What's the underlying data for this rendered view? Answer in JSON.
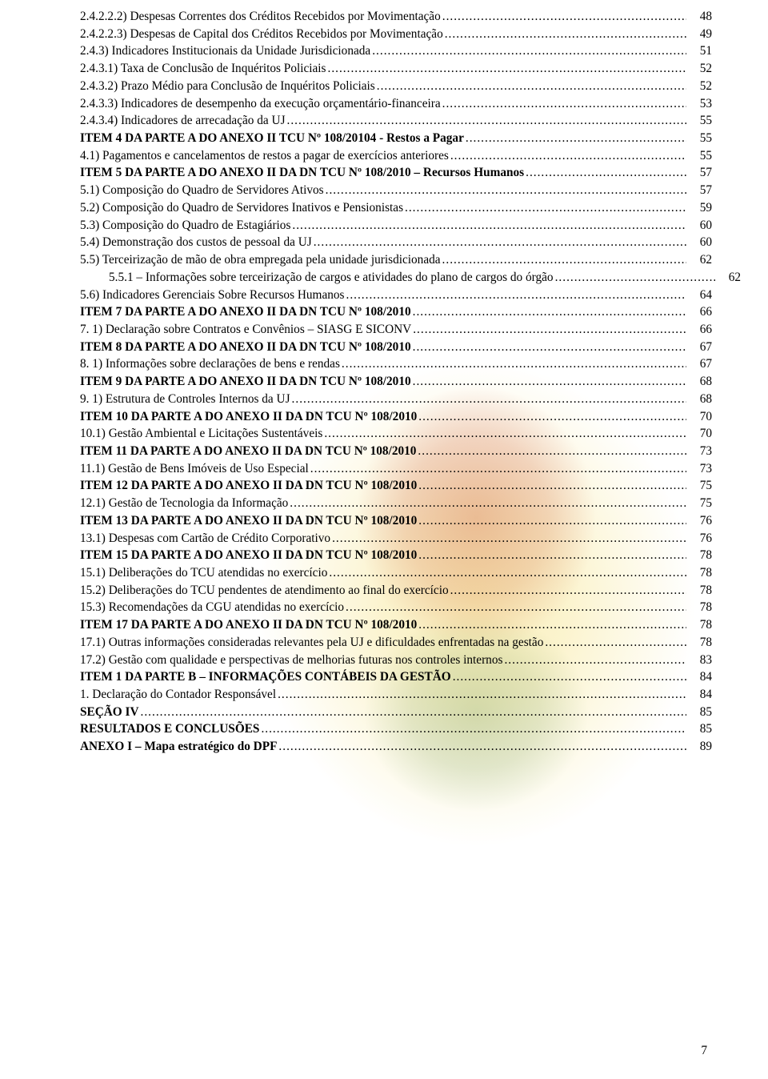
{
  "page_number": "7",
  "style": {
    "font_family": "Times New Roman",
    "font_size_pt": 12,
    "text_color": "#000000",
    "background_color": "#ffffff",
    "watermark_colors": [
      "#f0d23c",
      "#be2828",
      "#286e32"
    ]
  },
  "toc": [
    {
      "label": "2.4.2.2.2) Despesas Correntes dos Créditos Recebidos por Movimentação",
      "page": "48",
      "bold": false,
      "indent": 0
    },
    {
      "label": "2.4.2.2.3) Despesas de Capital dos Créditos Recebidos por Movimentação",
      "page": "49",
      "bold": false,
      "indent": 0
    },
    {
      "label": "2.4.3) Indicadores Institucionais da Unidade Jurisdicionada",
      "page": "51",
      "bold": false,
      "indent": 0
    },
    {
      "label": "2.4.3.1) Taxa de Conclusão de Inquéritos Policiais",
      "page": "52",
      "bold": false,
      "indent": 0
    },
    {
      "label": "2.4.3.2) Prazo Médio para Conclusão de Inquéritos Policiais",
      "page": "52",
      "bold": false,
      "indent": 0
    },
    {
      "label": "2.4.3.3) Indicadores de desempenho da execução orçamentário-financeira",
      "page": "53",
      "bold": false,
      "indent": 0
    },
    {
      "label": "2.4.3.4) Indicadores de arrecadação da UJ",
      "page": "55",
      "bold": false,
      "indent": 0
    },
    {
      "label": "ITEM 4 DA PARTE A DO ANEXO II TCU Nº 108/20104 - Restos a Pagar",
      "page": "55",
      "bold": true,
      "indent": 0
    },
    {
      "label": "4.1) Pagamentos e cancelamentos de restos a pagar de exercícios anteriores",
      "page": "55",
      "bold": false,
      "indent": 0
    },
    {
      "label": "ITEM 5 DA PARTE A DO ANEXO II DA DN TCU Nº 108/2010 – Recursos Humanos",
      "page": "57",
      "bold": true,
      "indent": 0
    },
    {
      "label": "5.1)  Composição do Quadro de Servidores Ativos",
      "page": "57",
      "bold": false,
      "indent": 0
    },
    {
      "label": "5.2)  Composição do Quadro de Servidores Inativos e Pensionistas",
      "page": "59",
      "bold": false,
      "indent": 0
    },
    {
      "label": "5.3) Composição do Quadro de Estagiários",
      "page": "60",
      "bold": false,
      "indent": 0
    },
    {
      "label": "5.4) Demonstração dos custos de pessoal da UJ",
      "page": "60",
      "bold": false,
      "indent": 0
    },
    {
      "label": "5.5) Terceirização de mão de obra empregada pela unidade jurisdicionada",
      "page": "62",
      "bold": false,
      "indent": 0
    },
    {
      "label": "5.5.1 – Informações sobre terceirização de cargos e atividades do plano de cargos do órgão",
      "page": "62",
      "bold": false,
      "indent": 1
    },
    {
      "label": "5.6) Indicadores Gerenciais Sobre Recursos Humanos",
      "page": "64",
      "bold": false,
      "indent": 0
    },
    {
      "label": "ITEM 7 DA PARTE A DO ANEXO II DA DN TCU Nº 108/2010",
      "page": "66",
      "bold": true,
      "indent": 0
    },
    {
      "label": "7. 1) Declaração sobre Contratos e Convênios – SIASG E SICONV",
      "page": "66",
      "bold": false,
      "indent": 0
    },
    {
      "label": "ITEM 8 DA PARTE A DO ANEXO II DA DN TCU Nº 108/2010",
      "page": "67",
      "bold": true,
      "indent": 0
    },
    {
      "label": "8. 1) Informações sobre declarações de bens e rendas",
      "page": "67",
      "bold": false,
      "indent": 0
    },
    {
      "label": "ITEM 9 DA PARTE A DO ANEXO II DA DN TCU Nº 108/2010",
      "page": "68",
      "bold": true,
      "indent": 0
    },
    {
      "label": "9. 1) Estrutura de Controles Internos da UJ",
      "page": "68",
      "bold": false,
      "indent": 0
    },
    {
      "label": "ITEM 10 DA PARTE A DO ANEXO II DA DN TCU Nº 108/2010",
      "page": "70",
      "bold": true,
      "indent": 0
    },
    {
      "label": "10.1) Gestão Ambiental e Licitações Sustentáveis",
      "page": "70",
      "bold": false,
      "indent": 0
    },
    {
      "label": "ITEM 11 DA PARTE A DO ANEXO II DA DN TCU Nº 108/2010",
      "page": "73",
      "bold": true,
      "indent": 0
    },
    {
      "label": "11.1) Gestão de Bens Imóveis de Uso Especial",
      "page": "73",
      "bold": false,
      "indent": 0
    },
    {
      "label": "ITEM 12 DA PARTE A DO ANEXO II DA DN TCU Nº 108/2010",
      "page": "75",
      "bold": true,
      "indent": 0
    },
    {
      "label": "12.1) Gestão de Tecnologia da Informação",
      "page": "75",
      "bold": false,
      "indent": 0
    },
    {
      "label": "ITEM 13 DA PARTE A DO ANEXO II DA DN TCU Nº 108/2010",
      "page": "76",
      "bold": true,
      "indent": 0
    },
    {
      "label": "13.1) Despesas com Cartão de Crédito Corporativo",
      "page": "76",
      "bold": false,
      "indent": 0
    },
    {
      "label": "ITEM 15 DA PARTE A DO ANEXO II DA DN TCU Nº 108/2010",
      "page": "78",
      "bold": true,
      "indent": 0
    },
    {
      "label": "15.1) Deliberações do TCU atendidas no exercício",
      "page": "78",
      "bold": false,
      "indent": 0
    },
    {
      "label": "15.2) Deliberações do TCU pendentes de atendimento ao final do exercício",
      "page": "78",
      "bold": false,
      "indent": 0
    },
    {
      "label": "15.3) Recomendações da CGU atendidas no exercício",
      "page": "78",
      "bold": false,
      "indent": 0
    },
    {
      "label": "ITEM 17 DA PARTE A DO ANEXO II DA DN TCU Nº 108/2010",
      "page": "78",
      "bold": true,
      "indent": 0
    },
    {
      "label": "17.1) Outras informações consideradas relevantes pela UJ e dificuldades enfrentadas na gestão",
      "page": "78",
      "bold": false,
      "indent": 0
    },
    {
      "label": "17.2) Gestão com qualidade e perspectivas de melhorias futuras nos controles internos ",
      "page": "83",
      "bold": false,
      "indent": 0
    },
    {
      "label": "ITEM 1 DA PARTE B – INFORMAÇÕES CONTÁBEIS DA GESTÃO ",
      "page": "84",
      "bold": true,
      "indent": 0
    },
    {
      "label": "1. Declaração do Contador Responsável ",
      "page": "84",
      "bold": false,
      "indent": 0
    },
    {
      "label": "SEÇÃO IV",
      "page": "85",
      "bold": true,
      "indent": 0
    },
    {
      "label": "RESULTADOS E CONCLUSÕES",
      "page": "85",
      "bold": true,
      "indent": 0
    },
    {
      "label": "ANEXO I – Mapa estratégico do DPF",
      "page": "89",
      "bold": true,
      "indent": 0
    }
  ]
}
